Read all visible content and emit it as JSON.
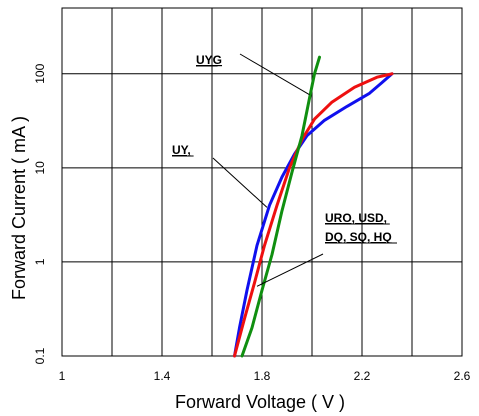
{
  "chart_data": {
    "type": "line",
    "title": "",
    "xlabel": "Forward Voltage ( V )",
    "ylabel": "Forward Current ( mA )",
    "x_scale": "linear",
    "y_scale": "log",
    "xlim": [
      1.0,
      2.6
    ],
    "ylim": [
      0.1,
      500
    ],
    "grid": true,
    "x_ticks": [
      1,
      1.4,
      1.8,
      2.2,
      2.6
    ],
    "x_tick_labels": [
      "1",
      "1.4",
      "1.8",
      "2.2",
      "2.6"
    ],
    "y_ticks": [
      0.1,
      1,
      10,
      100
    ],
    "y_tick_labels": [
      "0.1",
      "1",
      "10",
      "100"
    ],
    "series": [
      {
        "color": "#1010ee",
        "x": [
          1.69,
          1.71,
          1.74,
          1.78,
          1.83,
          1.88,
          1.93,
          1.98,
          2.05,
          2.14,
          2.23,
          2.29,
          2.32
        ],
        "y": [
          0.1,
          0.2,
          0.5,
          1.5,
          4.0,
          8.0,
          14.0,
          22.0,
          32.0,
          45.0,
          62.0,
          85.0,
          100.0
        ]
      },
      {
        "color": "#ee1010",
        "x": [
          1.69,
          1.73,
          1.77,
          1.81,
          1.86,
          1.91,
          1.96,
          2.01,
          2.08,
          2.17,
          2.26,
          2.32
        ],
        "y": [
          0.1,
          0.25,
          0.6,
          1.5,
          4.0,
          10.0,
          20.0,
          33.0,
          50.0,
          72.0,
          92.0,
          100.0
        ]
      },
      {
        "color": "#108f10",
        "x": [
          1.72,
          1.76,
          1.8,
          1.84,
          1.88,
          1.92,
          1.96,
          1.99,
          2.01,
          2.03
        ],
        "y": [
          0.1,
          0.2,
          0.5,
          1.2,
          3.5,
          9.0,
          22.0,
          55.0,
          100.0,
          150.0
        ]
      }
    ],
    "annotations": [
      {
        "text": "UYG",
        "target": [
          1.99,
          60
        ]
      },
      {
        "text": "UY,",
        "target": [
          1.82,
          3.8
        ]
      },
      {
        "text": "URO, USD,",
        "target": [
          1.78,
          0.55
        ]
      },
      {
        "text": "DQ, SQ, HQ",
        "target": [
          1.78,
          0.55
        ]
      }
    ]
  }
}
